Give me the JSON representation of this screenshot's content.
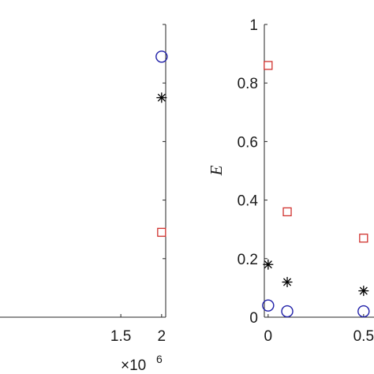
{
  "chart_data": [
    {
      "type": "scatter",
      "title": "",
      "xlabel": "",
      "ylabel": "",
      "x_multiplier": "×10",
      "x_exponent": "6",
      "xlim": [
        0,
        2.05
      ],
      "ylim": [
        0,
        1
      ],
      "xticks": [
        {
          "value": 1.5,
          "label": "1.5"
        },
        {
          "value": 2,
          "label": "2"
        }
      ],
      "series": [
        {
          "marker": "circle",
          "color": "#1f1fa8",
          "points": [
            {
              "x": 2.0,
              "y": 0.89
            }
          ]
        },
        {
          "marker": "asterisk",
          "color": "#000000",
          "points": [
            {
              "x": 2.0,
              "y": 0.75
            }
          ]
        },
        {
          "marker": "square",
          "color": "#d0312d",
          "points": [
            {
              "x": 2.0,
              "y": 0.29
            }
          ]
        }
      ]
    },
    {
      "type": "scatter",
      "title": "",
      "xlabel": "",
      "ylabel": "E",
      "xlim": [
        -0.02,
        0.6
      ],
      "ylim": [
        0,
        1
      ],
      "yticks": [
        {
          "value": 0,
          "label": "0"
        },
        {
          "value": 0.2,
          "label": "0.2"
        },
        {
          "value": 0.4,
          "label": "0.4"
        },
        {
          "value": 0.6,
          "label": "0.6"
        },
        {
          "value": 0.8,
          "label": "0.8"
        },
        {
          "value": 1,
          "label": "1"
        }
      ],
      "xticks": [
        {
          "value": 0,
          "label": "0"
        },
        {
          "value": 0.5,
          "label": "0.5"
        }
      ],
      "series": [
        {
          "marker": "square",
          "color": "#d0312d",
          "points": [
            {
              "x": 0.0,
              "y": 0.86
            },
            {
              "x": 0.1,
              "y": 0.36
            },
            {
              "x": 0.5,
              "y": 0.27
            }
          ]
        },
        {
          "marker": "asterisk",
          "color": "#000000",
          "points": [
            {
              "x": 0.0,
              "y": 0.18
            },
            {
              "x": 0.1,
              "y": 0.12
            },
            {
              "x": 0.5,
              "y": 0.09
            }
          ]
        },
        {
          "marker": "circle",
          "color": "#1f1fa8",
          "points": [
            {
              "x": 0.0,
              "y": 0.04
            },
            {
              "x": 0.1,
              "y": 0.02
            },
            {
              "x": 0.5,
              "y": 0.02
            }
          ]
        }
      ]
    }
  ]
}
